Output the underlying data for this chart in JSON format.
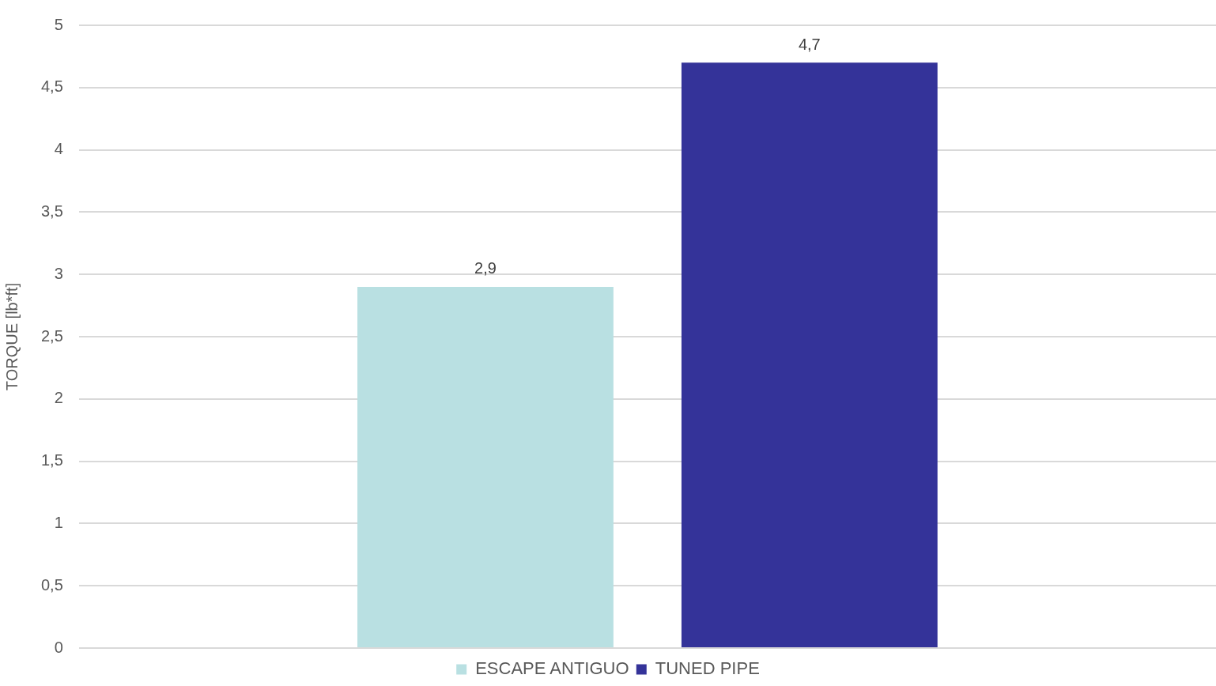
{
  "chart_data": {
    "type": "bar",
    "ylabel": "TORQUE [lb*ft]",
    "categories": [
      null
    ],
    "series": [
      {
        "name": "ESCAPE ANTIGUO",
        "color": "#b9e0e2",
        "values": [
          2.9
        ],
        "value_labels": [
          "2,9"
        ]
      },
      {
        "name": "TUNED PIPE",
        "color": "#343399",
        "values": [
          4.7
        ],
        "value_labels": [
          "4,7"
        ]
      }
    ],
    "ylim": [
      0,
      5
    ],
    "yticks": [
      0,
      {
        "value": 0.5,
        "label": "0,5"
      },
      1,
      {
        "value": 1.5,
        "label": "1,5"
      },
      2,
      {
        "value": 2.5,
        "label": "2,5"
      },
      3,
      {
        "value": 3.5,
        "label": "3,5"
      },
      4,
      {
        "value": 4.5,
        "label": "4,5"
      },
      5
    ],
    "grid": "y",
    "legend": "bottom",
    "tick_labels": "y"
  }
}
